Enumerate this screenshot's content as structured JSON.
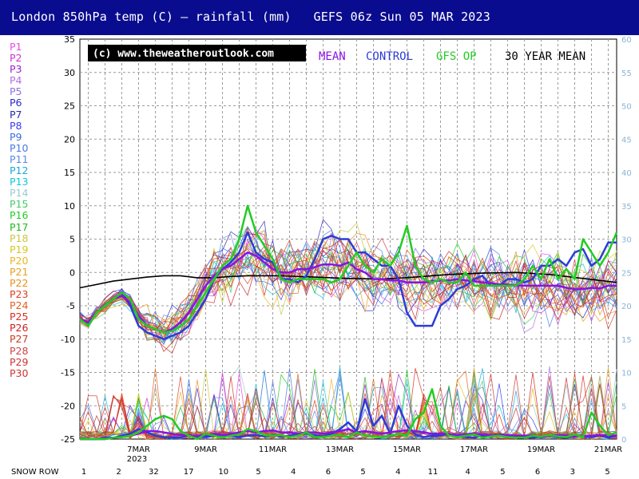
{
  "header": {
    "title": "London 850hPa temp (C) — rainfall (mm)   GEFS 06z Sun 05 MAR 2023"
  },
  "colors": {
    "header_bg": "#0a0c8f",
    "mean": "#8a12e6",
    "control": "#2c3cd8",
    "gfs_op": "#22cc22",
    "climate_mean": "#000000",
    "grid": "#9a9a9a",
    "right_axis": "#8cb4d4"
  },
  "members": [
    {
      "label": "P1",
      "color": "#e64ae6"
    },
    {
      "label": "P2",
      "color": "#cc33cc"
    },
    {
      "label": "P3",
      "color": "#9922cc"
    },
    {
      "label": "P4",
      "color": "#b070e0"
    },
    {
      "label": "P5",
      "color": "#9070e0"
    },
    {
      "label": "P6",
      "color": "#2a2acc"
    },
    {
      "label": "P7",
      "color": "#2a2aa8"
    },
    {
      "label": "P8",
      "color": "#3a3af0"
    },
    {
      "label": "P9",
      "color": "#3a6ae0"
    },
    {
      "label": "P10",
      "color": "#4a7ae0"
    },
    {
      "label": "P11",
      "color": "#5a8ae8"
    },
    {
      "label": "P12",
      "color": "#1aaad8"
    },
    {
      "label": "P13",
      "color": "#10c8d8"
    },
    {
      "label": "P14",
      "color": "#98cccc"
    },
    {
      "label": "P15",
      "color": "#44cc66"
    },
    {
      "label": "P16",
      "color": "#22cc22"
    },
    {
      "label": "P17",
      "color": "#22b822"
    },
    {
      "label": "P18",
      "color": "#c8c844"
    },
    {
      "label": "P19",
      "color": "#d8c822"
    },
    {
      "label": "P20",
      "color": "#e8b820"
    },
    {
      "label": "P21",
      "color": "#e8a020"
    },
    {
      "label": "P22",
      "color": "#e89020"
    },
    {
      "label": "P23",
      "color": "#e04020"
    },
    {
      "label": "P24",
      "color": "#e06020"
    },
    {
      "label": "P25",
      "color": "#d83020"
    },
    {
      "label": "P26",
      "color": "#cc2222"
    },
    {
      "label": "P27",
      "color": "#cc3a22"
    },
    {
      "label": "P28",
      "color": "#cc4444"
    },
    {
      "label": "P29",
      "color": "#cc3333"
    },
    {
      "label": "P30",
      "color": "#cc3333"
    }
  ],
  "chart_data": {
    "type": "line",
    "copyright": "(c) www.theweatheroutlook.com",
    "legend": {
      "mean": "MEAN",
      "control": "CONTROL",
      "gfs_op": "GFS OP",
      "climate": "30 YEAR MEAN"
    },
    "ylim": [
      -25,
      35
    ],
    "yticks": [
      35,
      30,
      25,
      20,
      15,
      10,
      5,
      0,
      -5,
      -10,
      -15,
      -20,
      -25
    ],
    "y2lim": [
      0,
      60
    ],
    "y2ticks": [
      60,
      55,
      50,
      45,
      40,
      35,
      30,
      25,
      20,
      15,
      10,
      5,
      0
    ],
    "xlim": [
      0,
      16
    ],
    "x_ticks": [
      {
        "x": 1.75,
        "label": "7MAR",
        "sub": "2023"
      },
      {
        "x": 3.75,
        "label": "9MAR",
        "sub": ""
      },
      {
        "x": 5.75,
        "label": "11MAR",
        "sub": ""
      },
      {
        "x": 7.75,
        "label": "13MAR",
        "sub": ""
      },
      {
        "x": 9.75,
        "label": "15MAR",
        "sub": ""
      },
      {
        "x": 11.75,
        "label": "17MAR",
        "sub": ""
      },
      {
        "x": 13.75,
        "label": "19MAR",
        "sub": ""
      },
      {
        "x": 15.75,
        "label": "21MAR",
        "sub": ""
      }
    ],
    "snow_row": {
      "label": "SNOW ROW",
      "values": [
        "1",
        "2",
        "32",
        "17",
        "10",
        "5",
        "4",
        "6",
        "5",
        "4",
        "11",
        "4",
        "5",
        "6",
        "3",
        "5"
      ]
    },
    "series_x_step": 0.25,
    "gfs_op_temp": [
      -7,
      -8,
      -6,
      -5,
      -4,
      -3,
      -4,
      -7,
      -8,
      -8.5,
      -9,
      -8.8,
      -8,
      -7,
      -5,
      -3,
      -1,
      1,
      2,
      5,
      10,
      6,
      4,
      2,
      -1,
      -1.5,
      -1,
      -1,
      -1,
      -1,
      -1.5,
      -1,
      1,
      3,
      1,
      0,
      2,
      1,
      3,
      7,
      1,
      -1,
      -1.5,
      -1,
      -1.5,
      -1.5,
      0,
      -2,
      -2,
      -2,
      -2,
      -2,
      -2,
      -1,
      1,
      -1,
      2,
      -1,
      0.5,
      -1,
      5,
      3,
      1,
      3,
      6
    ],
    "control_temp": [
      -7,
      -7.5,
      -6,
      -5,
      -4,
      -3,
      -5,
      -8,
      -9,
      -9.5,
      -10,
      -9.5,
      -9,
      -8,
      -6,
      -4,
      -1,
      0.5,
      1.5,
      3,
      6,
      3,
      2,
      1.5,
      -1,
      -1,
      -1.5,
      -0.5,
      2,
      5,
      5.5,
      5,
      5,
      3,
      3,
      2,
      1,
      1,
      -1,
      -6,
      -8,
      -8,
      -8,
      -5,
      -4,
      -2.5,
      -2,
      -1,
      -0.5,
      -2,
      -2,
      -1,
      -1,
      -1.5,
      -1,
      1,
      1,
      2,
      1,
      3,
      3.5,
      1,
      2,
      4.5,
      4.5
    ],
    "mean_temp": [
      -7,
      -7.5,
      -6,
      -5,
      -4,
      -3.5,
      -4.5,
      -6.5,
      -8,
      -8.5,
      -9,
      -8.5,
      -7.5,
      -6,
      -4,
      -2,
      -0.5,
      0.5,
      1,
      2,
      3,
      2.5,
      1.5,
      0.5,
      0,
      0,
      0.5,
      0.5,
      0.8,
      1.2,
      1.2,
      1,
      1.5,
      0.5,
      0,
      -1,
      -1,
      -1.2,
      -1.2,
      -1.5,
      -1.5,
      -1.5,
      -1.3,
      -1.2,
      -1.2,
      -1,
      -1.2,
      -1.3,
      -1.5,
      -1.6,
      -1.8,
      -1.8,
      -2,
      -2,
      -2,
      -2,
      -2,
      -2,
      -2.3,
      -2.5,
      -2.5,
      -2.3,
      -2.4,
      -2,
      -2
    ],
    "climate_temp": [
      -2.3,
      -1.3,
      -0.7,
      -0.5,
      -0.5,
      -0.8,
      -0.8,
      -0.6,
      -0.5,
      -0.5,
      -0.7,
      -0.9,
      -1.0,
      -0.7,
      -0.3,
      -0.1,
      0,
      -0.3,
      -1.5
    ],
    "climate_x": [
      0,
      1,
      2,
      2.5,
      3,
      3.5,
      4,
      4.5,
      5,
      6,
      7,
      8,
      9,
      10,
      11,
      12,
      13,
      14,
      16
    ],
    "gfs_op_rain": [
      0,
      0,
      0,
      0,
      0.2,
      0.3,
      0.5,
      1,
      2,
      3,
      3.5,
      3,
      1.2,
      0.5,
      0,
      0.8,
      0.5,
      0.2,
      0.5,
      0.7,
      1.5,
      1.2,
      0.6,
      0.5,
      0.6,
      0.3,
      0.5,
      1,
      0.3,
      0.3,
      0.5,
      0.6,
      0.3,
      1,
      0.5,
      0.4,
      0.3,
      0.5,
      0.8,
      0.5,
      3,
      4,
      7.5,
      2,
      0.5,
      0.3,
      0.5,
      0.7,
      0.2,
      0.4,
      0.5,
      0.3,
      0.2,
      0.2,
      0.5,
      0.4,
      0.6,
      0.4,
      0.3,
      0.7,
      0.3,
      4,
      2,
      0.6,
      1
    ],
    "control_rain": [
      0,
      0,
      0,
      0.2,
      0.2,
      0.5,
      0.8,
      1.5,
      1,
      0.5,
      0.3,
      0.2,
      0.2,
      0.6,
      0.4,
      0.3,
      0.5,
      0.6,
      0.5,
      0.3,
      0.5,
      0.6,
      0.4,
      0.6,
      0.4,
      0.5,
      0.8,
      0.8,
      0.6,
      0.4,
      0.8,
      1.5,
      2.5,
      1.2,
      6,
      2,
      3.5,
      0.8,
      5,
      2,
      0.7,
      0.3,
      0.5,
      0.5,
      0.8,
      0.5,
      0.3,
      0.2,
      0.5,
      0.3,
      0.7,
      0.6,
      0.5,
      0.3,
      0.2,
      0.4,
      0.5,
      0.3,
      0.2,
      0.5,
      0.4,
      0.3,
      0.6,
      0.2,
      0.5
    ],
    "mean_rain": [
      0,
      0,
      0,
      0,
      0.2,
      0.3,
      0.5,
      0.8,
      1.2,
      1.2,
      1,
      0.8,
      0.6,
      0.5,
      0.5,
      0.6,
      0.8,
      0.6,
      0.8,
      1,
      1.2,
      1,
      1.2,
      1.3,
      1,
      1,
      0.8,
      1,
      1,
      0.8,
      1,
      1.2,
      1.5,
      1,
      1.2,
      1,
      0.8,
      1,
      1.2,
      1.3,
      1.2,
      1,
      0.8,
      0.8,
      0.8,
      0.6,
      0.7,
      0.8,
      0.7,
      0.6,
      0.6,
      0.6,
      0.5,
      0.5,
      0.5,
      0.4,
      0.5,
      0.6,
      0.5,
      0.4,
      0.5,
      0.5,
      0.6,
      0.5,
      0.5
    ]
  }
}
